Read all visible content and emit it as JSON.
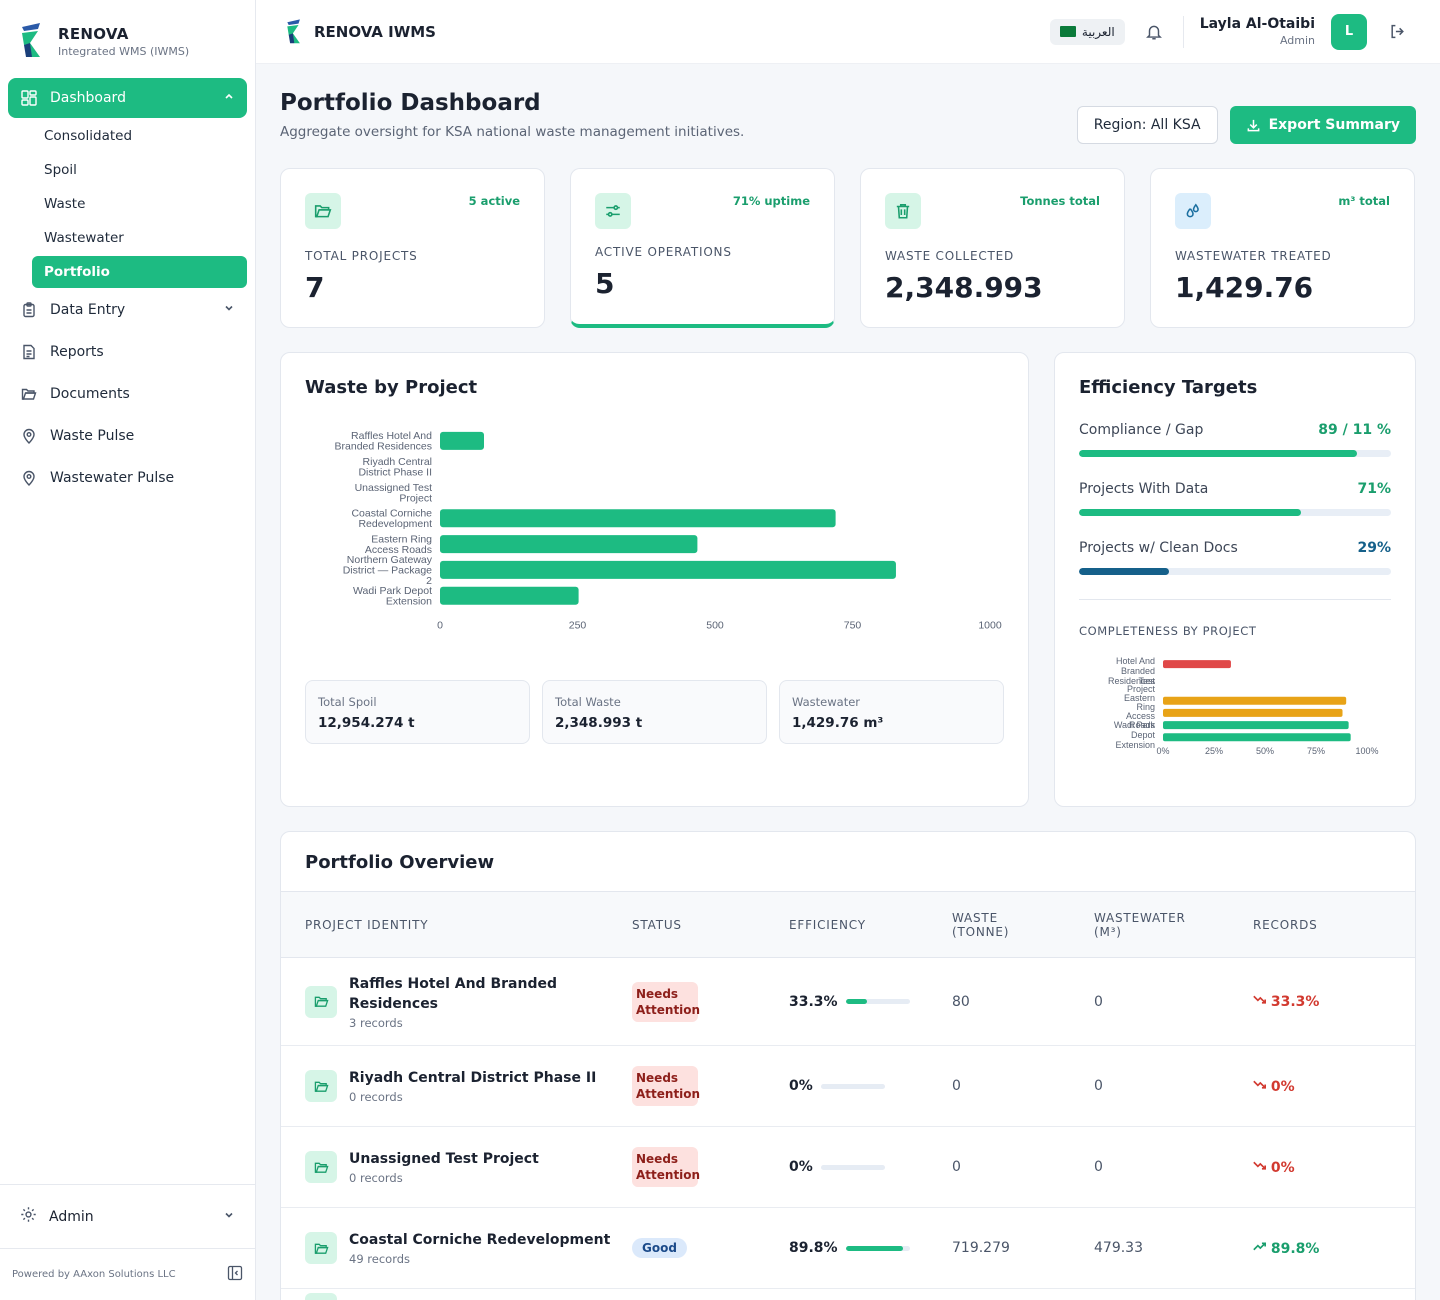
{
  "sidebar": {
    "brand": "RENOVA",
    "brand_sub": "Integrated WMS (IWMS)",
    "nav_dashboard": "Dashboard",
    "sub_items": [
      "Consolidated",
      "Spoil",
      "Waste",
      "Wastewater",
      "Portfolio"
    ],
    "nav_items": [
      "Data Entry",
      "Reports",
      "Documents",
      "Waste Pulse",
      "Wastewater Pulse"
    ],
    "admin": "Admin",
    "powered": "Powered by AAxon Solutions LLC"
  },
  "topbar": {
    "brand": "RENOVA IWMS",
    "lang": "العربية",
    "user_name": "Layla Al-Otaibi",
    "user_role": "Admin",
    "avatar_initial": "L"
  },
  "page": {
    "title": "Portfolio Dashboard",
    "subtitle": "Aggregate oversight for KSA national waste management initiatives.",
    "region_button": "Region: All KSA",
    "export_button": "Export Summary"
  },
  "kpis": [
    {
      "tag": "5 active",
      "label": "TOTAL PROJECTS",
      "value": "7"
    },
    {
      "tag": "71% uptime",
      "label": "ACTIVE OPERATIONS",
      "value": "5"
    },
    {
      "tag": "Tonnes total",
      "label": "WASTE COLLECTED",
      "value": "2,348.993"
    },
    {
      "tag": "m³ total",
      "label": "WASTEWATER TREATED",
      "value": "1,429.76"
    }
  ],
  "waste_chart": {
    "title": "Waste by Project",
    "totals": [
      {
        "label": "Total Spoil",
        "value": "12,954.274 t"
      },
      {
        "label": "Total Waste",
        "value": "2,348.993 t"
      },
      {
        "label": "Wastewater",
        "value": "1,429.76 m³"
      }
    ]
  },
  "efficiency": {
    "title": "Efficiency Targets",
    "rows": [
      {
        "label": "Compliance / Gap",
        "value": "89 / 11 %",
        "fill": 0.89
      },
      {
        "label": "Projects With Data",
        "value": "71%",
        "fill": 0.71
      },
      {
        "label": "Projects w/ Clean Docs",
        "value": "29%",
        "fill": 0.29
      }
    ],
    "completeness_title": "COMPLETENESS BY PROJECT"
  },
  "chart_data": [
    {
      "type": "bar",
      "orientation": "horizontal",
      "categories": [
        "Raffles Hotel And Branded Residences",
        "Riyadh Central District Phase II",
        "Unassigned Test Project",
        "Coastal Corniche Redevelopment",
        "Eastern Ring Access Roads",
        "Northern Gateway District — Package 2",
        "Wadi Park Depot Extension"
      ],
      "values": [
        80,
        0,
        0,
        719.279,
        468,
        829,
        252
      ],
      "xlim": [
        0,
        1000
      ],
      "xticks": [
        "0",
        "250",
        "500",
        "750",
        "1000"
      ],
      "color": "#1dbb82"
    },
    {
      "type": "bar",
      "orientation": "horizontal",
      "categories": [
        "Raffles Hotel And Branded Residences",
        "Riyadh Central District Phase II",
        "Unassigned Test Project",
        "Coastal Corniche Redevelopment",
        "Eastern Ring Access Roads",
        "Northern Gateway District — Package 2",
        "Wadi Park Depot Extension"
      ],
      "tick_labels_visible": [
        "Hotel And",
        "Branded",
        "Residences",
        "Test",
        "Project",
        "Eastern",
        "Ring",
        "Access",
        "Roads",
        "Wadi Park",
        "Depot",
        "Extension"
      ],
      "values": [
        33.3,
        0,
        0,
        89.8,
        88,
        91,
        92
      ],
      "colors": [
        "#e04848",
        "#e04848",
        "#e04848",
        "#e8a317",
        "#e8a317",
        "#1dbb82",
        "#1dbb82"
      ],
      "xlim": [
        0,
        100
      ],
      "xticks": [
        "0%",
        "25%",
        "50%",
        "75%",
        "100%"
      ]
    }
  ],
  "table": {
    "title": "Portfolio Overview",
    "headers": [
      "PROJECT IDENTITY",
      "STATUS",
      "EFFICIENCY",
      "WASTE (TONNE)",
      "WASTEWATER (M³)",
      "RECORDS"
    ],
    "rows": [
      {
        "name": "Raffles Hotel And Branded Residences",
        "records": "3 records",
        "status": "Needs Attention",
        "status_type": "warn",
        "efficiency": "33.3%",
        "eff_fill": 0.333,
        "waste": "80",
        "wastewater": "0",
        "trend": "33.3%",
        "trend_dir": "down"
      },
      {
        "name": "Riyadh Central District Phase II",
        "records": "0 records",
        "status": "Needs Attention",
        "status_type": "warn",
        "efficiency": "0%",
        "eff_fill": 0,
        "waste": "0",
        "wastewater": "0",
        "trend": "0%",
        "trend_dir": "down"
      },
      {
        "name": "Unassigned Test Project",
        "records": "0 records",
        "status": "Needs Attention",
        "status_type": "warn",
        "efficiency": "0%",
        "eff_fill": 0,
        "waste": "0",
        "wastewater": "0",
        "trend": "0%",
        "trend_dir": "down"
      },
      {
        "name": "Coastal Corniche Redevelopment",
        "records": "49 records",
        "status": "Good",
        "status_type": "good",
        "efficiency": "89.8%",
        "eff_fill": 0.898,
        "waste": "719.279",
        "wastewater": "479.33",
        "trend": "89.8%",
        "trend_dir": "up"
      }
    ]
  }
}
